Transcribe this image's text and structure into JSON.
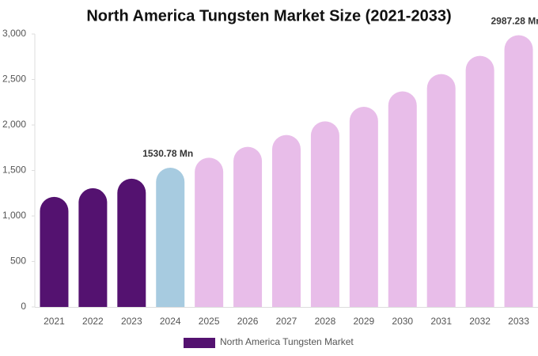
{
  "chart_data": {
    "type": "bar",
    "title": "North America Tungsten Market Size (2021-2033)",
    "categories": [
      "2021",
      "2022",
      "2023",
      "2024",
      "2025",
      "2026",
      "2027",
      "2028",
      "2029",
      "2030",
      "2031",
      "2032",
      "2033"
    ],
    "series": [
      {
        "name": "North America Tungsten Market",
        "color": "#541270",
        "colors": [
          "#541270",
          "#541270",
          "#541270",
          "#a7cbe0",
          "#e8bde9",
          "#e8bde9",
          "#e8bde9",
          "#e8bde9",
          "#e8bde9",
          "#e8bde9",
          "#e8bde9",
          "#e8bde9",
          "#e8bde9"
        ],
        "values": [
          1210,
          1305,
          1410,
          1530.78,
          1640,
          1760,
          1890,
          2040,
          2200,
          2370,
          2560,
          2760,
          2987.28
        ],
        "value_labels": [
          null,
          null,
          null,
          "1530.78 Mn",
          null,
          null,
          null,
          null,
          null,
          null,
          null,
          null,
          "2987.28 Mn"
        ]
      }
    ],
    "ylim": [
      0,
      3000
    ],
    "yticks": [
      0,
      500,
      {
        "value": 1000,
        "label": "1,000"
      },
      {
        "value": 1500,
        "label": "1,500"
      },
      {
        "value": 2000,
        "label": "2,000"
      },
      {
        "value": 2500,
        "label": "2,500"
      },
      {
        "value": 3000,
        "label": "3,000"
      }
    ]
  }
}
